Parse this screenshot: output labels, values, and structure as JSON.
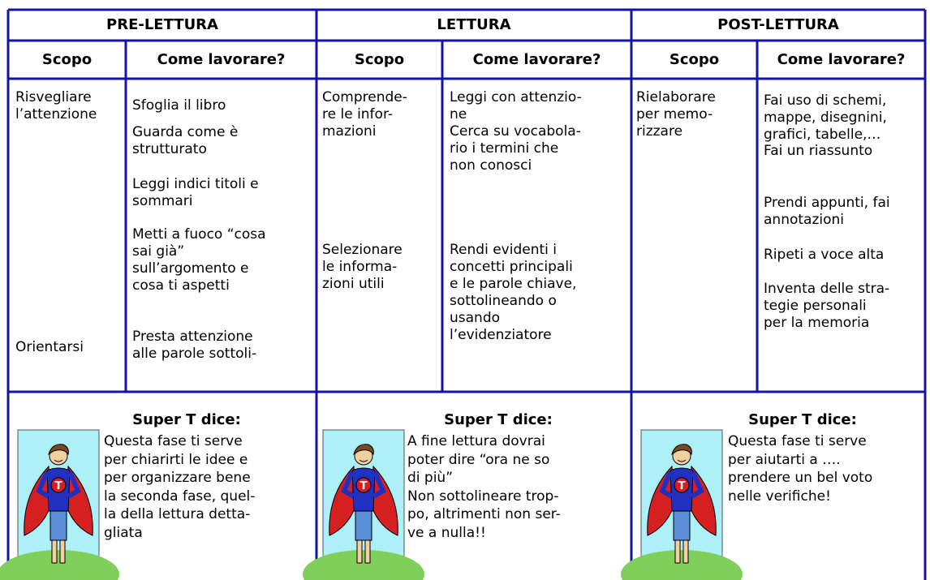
{
  "header": {
    "phases": [
      "PRE-LETTURA",
      "LETTURA",
      "POST-LETTURA"
    ],
    "columns": [
      "Scopo",
      "Come lavorare?",
      "Scopo",
      "Come lavorare?",
      "Scopo",
      "Come lavorare?"
    ]
  },
  "body": {
    "columns": [
      {
        "blocks": [
          {
            "lines": [
              "Risvegliare",
              "l’attenzione"
            ]
          },
          {
            "lines": [
              "Orientarsi"
            ]
          }
        ]
      },
      {
        "blocks": [
          {
            "lines": [
              "Sfoglia il libro"
            ]
          },
          {
            "lines": [
              "Guarda come è",
              "strutturato"
            ]
          },
          {
            "lines": [
              "Leggi indici titoli e",
              "sommari"
            ]
          },
          {
            "lines": [
              "Metti a fuoco “cosa",
              "sai già”",
              "sull’argomento e",
              "cosa ti aspetti"
            ]
          },
          {
            "lines": [
              "Presta attenzione",
              "alle parole sottoli-"
            ]
          }
        ]
      },
      {
        "blocks": [
          {
            "lines": [
              "Comprende-",
              "re le infor-",
              "mazioni"
            ]
          },
          {
            "lines": [
              "Selezionare",
              "le informa-",
              "zioni utili"
            ]
          }
        ]
      },
      {
        "blocks": [
          {
            "lines": [
              "Leggi con attenzio-",
              "ne",
              "Cerca su vocabola-",
              "rio i termini che",
              "non conosci"
            ]
          },
          {
            "lines": [
              "Rendi evidenti i",
              "concetti principali",
              "e le parole chiave,",
              "sottolineando o",
              "usando",
              "l’evidenziatore"
            ]
          }
        ]
      },
      {
        "blocks": [
          {
            "lines": [
              "Rielaborare",
              "per memo-",
              "rizzare"
            ]
          }
        ]
      },
      {
        "blocks": [
          {
            "lines": [
              "Fai uso di schemi,",
              "mappe, disegnini,",
              "grafici, tabelle,…"
            ]
          },
          {
            "lines": [
              "Fai un riassunto"
            ]
          },
          {
            "lines": [
              "Prendi appunti, fai",
              "annotazioni"
            ]
          },
          {
            "lines": [
              "Ripeti a voce alta"
            ]
          },
          {
            "lines": [
              "Inventa delle stra-",
              "tegie personali",
              "per la memoria"
            ]
          }
        ]
      }
    ]
  },
  "footer": {
    "panels": [
      {
        "title": "Super T dice:",
        "lines": [
          "Questa fase ti serve",
          "per chiarirti le idee e",
          "per organizzare bene",
          "la seconda fase, quel-",
          "la della lettura detta-",
          "gliata"
        ]
      },
      {
        "title": "Super T dice:",
        "lines": [
          "A fine lettura dovrai",
          "poter dire “ora ne so",
          "di più”",
          "Non sottolineare trop-",
          "po, altrimenti non ser-",
          "ve a nulla!!"
        ]
      },
      {
        "title": "Super T dice:",
        "lines": [
          "Questa fase ti serve",
          "per aiutarti a ….",
          "prendere un bel voto",
          "nelle verifiche!"
        ]
      }
    ]
  }
}
